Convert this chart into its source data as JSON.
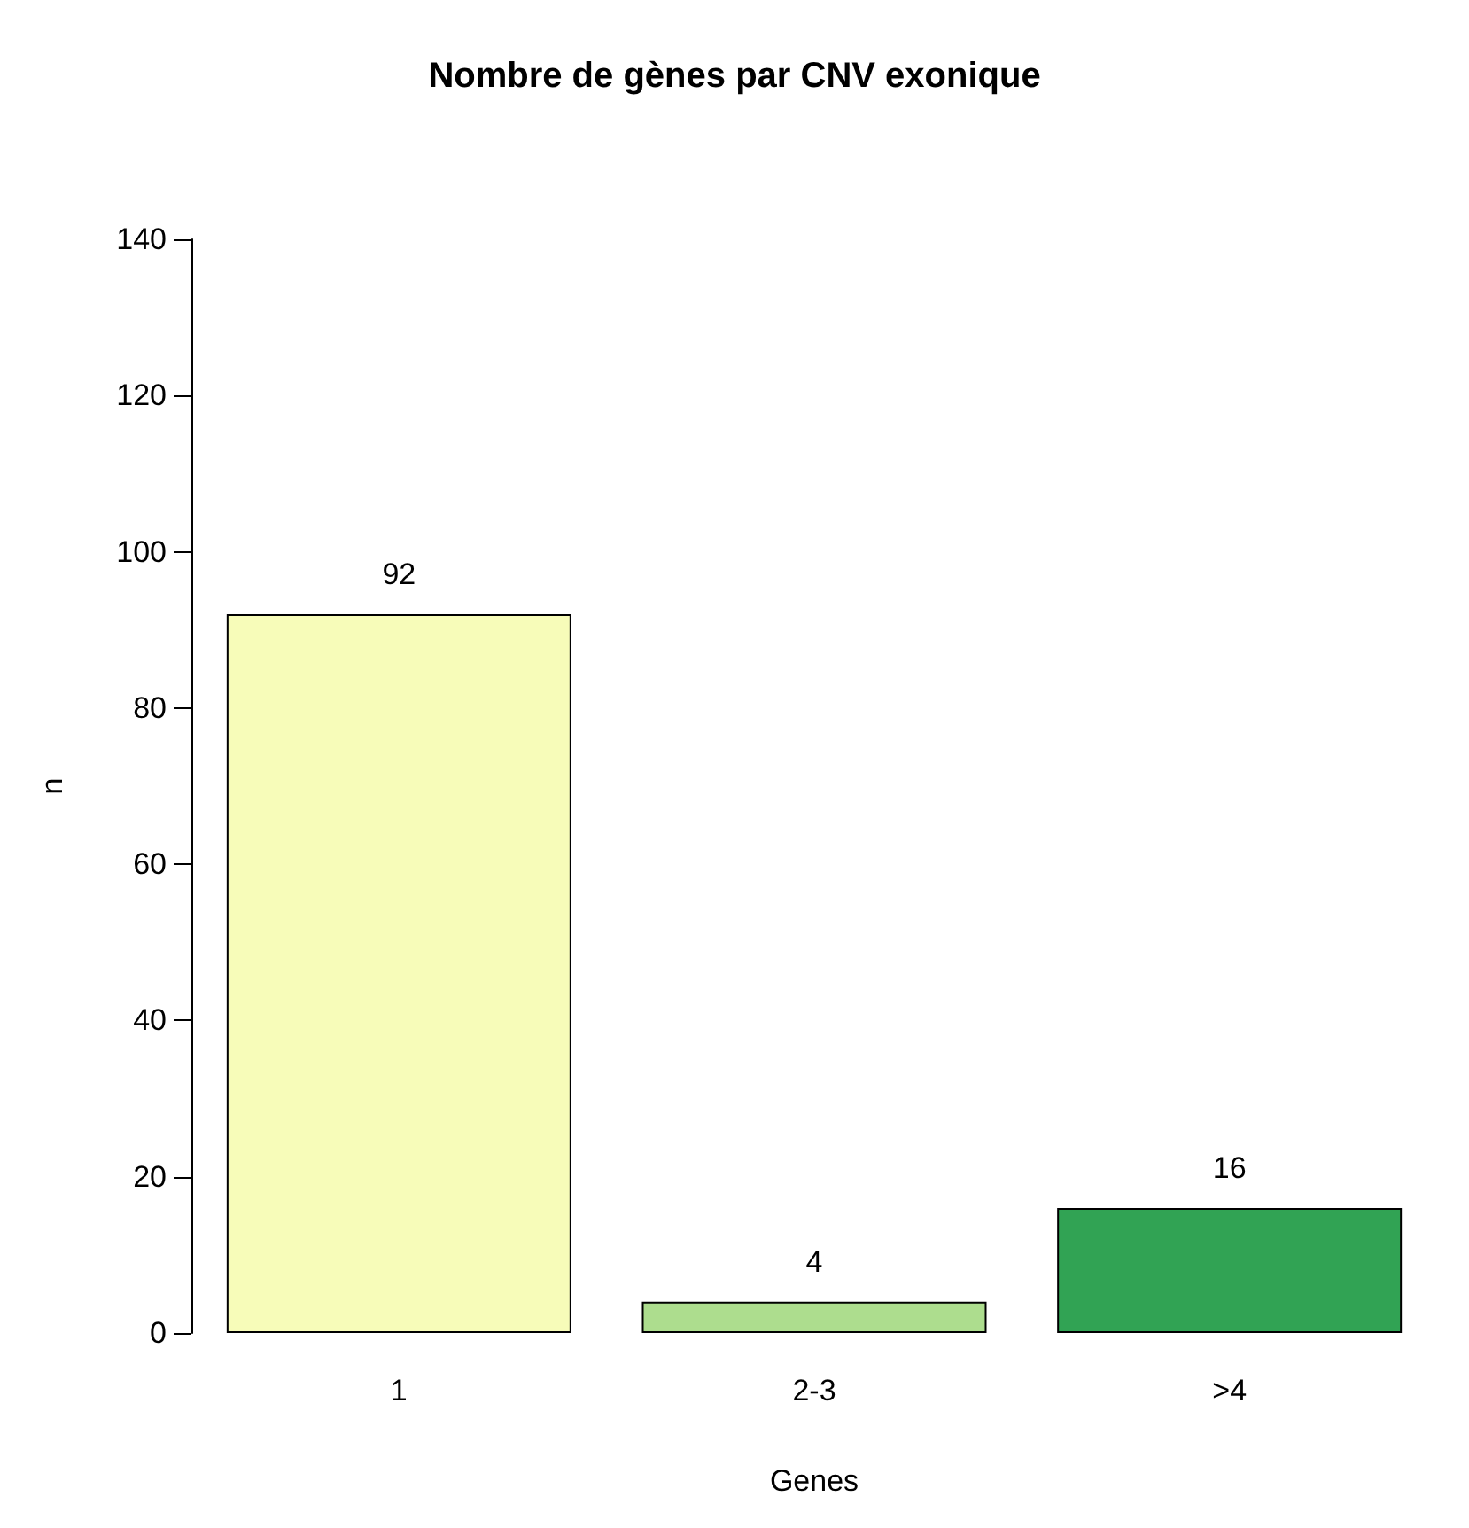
{
  "chart_data": {
    "type": "bar",
    "title": "Nombre de gènes par CNV exonique",
    "xlabel": "Genes",
    "ylabel": "n",
    "categories": [
      "1",
      "2-3",
      ">4"
    ],
    "values": [
      92,
      4,
      16
    ],
    "colors": [
      "#f7fcb9",
      "#addd8e",
      "#31a354"
    ],
    "ylim": [
      0,
      140
    ],
    "yticks": [
      0,
      20,
      40,
      60,
      80,
      100,
      120,
      140
    ],
    "data_labels": true
  }
}
